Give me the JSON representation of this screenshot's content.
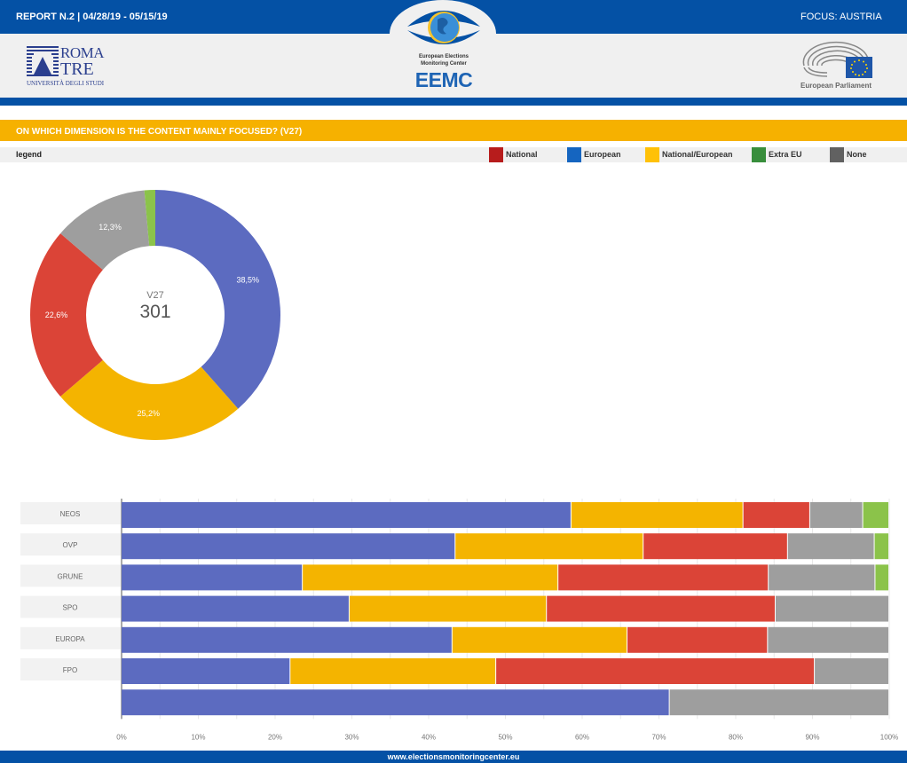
{
  "header": {
    "report_label": "REPORT N.2 | 04/28/19 - 05/15/19",
    "focus_label": "FOCUS: AUSTRIA",
    "logo_left": {
      "line1": "ROMA",
      "line2": "TRE",
      "line3": "UNIVERSITÀ DEGLI STUDI"
    },
    "logo_center": {
      "line1": "European Elections",
      "line2": "Monitoring Center",
      "acronym": "EEMC"
    },
    "logo_right": {
      "caption": "European Parliament"
    }
  },
  "question": {
    "title": "ON WHICH DIMENSION IS THE CONTENT MAINLY FOCUSED? (V27)"
  },
  "legend": {
    "label": "legend",
    "items": [
      {
        "label": "National",
        "color": "#b71c1c"
      },
      {
        "label": "European",
        "color": "#1565c0"
      },
      {
        "label": "National/European",
        "color": "#ffc107"
      },
      {
        "label": "Extra EU",
        "color": "#388e3c"
      },
      {
        "label": "None",
        "color": "#616161"
      }
    ]
  },
  "footer": {
    "url": "www.electionsmonitoringcenter.eu"
  },
  "chart_data": [
    {
      "type": "pie",
      "subtype": "donut",
      "center_label": "V27",
      "center_value": "301",
      "slices": [
        {
          "name": "European",
          "value": 38.5,
          "label": "38,5%",
          "color": "#5c6bc0"
        },
        {
          "name": "National/European",
          "value": 25.2,
          "label": "25,2%",
          "color": "#f4b400"
        },
        {
          "name": "National",
          "value": 22.6,
          "label": "22,6%",
          "color": "#db4437"
        },
        {
          "name": "None",
          "value": 12.3,
          "label": "12,3%",
          "color": "#9e9e9e"
        },
        {
          "name": "Extra EU",
          "value": 1.4,
          "label": "",
          "color": "#8bc34a"
        }
      ]
    },
    {
      "type": "bar",
      "orientation": "horizontal",
      "stacked": "percent",
      "categories": [
        "NEOS",
        "OVP",
        "GRUNE",
        "SPO",
        "EUROPA",
        "FPO",
        ""
      ],
      "series": [
        {
          "name": "European",
          "color": "#5c6bc0",
          "values": [
            58.6,
            43.5,
            23.6,
            29.7,
            43.1,
            22.0,
            71.4
          ]
        },
        {
          "name": "National/European",
          "color": "#f4b400",
          "values": [
            22.4,
            24.5,
            33.3,
            25.7,
            22.8,
            26.8,
            0
          ]
        },
        {
          "name": "National",
          "color": "#db4437",
          "values": [
            8.7,
            18.8,
            27.4,
            29.8,
            18.3,
            41.5,
            0
          ]
        },
        {
          "name": "None",
          "color": "#9e9e9e",
          "values": [
            6.9,
            11.3,
            13.9,
            14.8,
            15.8,
            9.7,
            28.6
          ]
        },
        {
          "name": "Extra EU",
          "color": "#8bc34a",
          "values": [
            3.4,
            1.9,
            1.8,
            0,
            0,
            0,
            0
          ]
        }
      ],
      "xlim": [
        0,
        100
      ],
      "xticks": [
        "0%",
        "10%",
        "20%",
        "30%",
        "40%",
        "50%",
        "60%",
        "70%",
        "80%",
        "90%",
        "100%"
      ],
      "grid": true
    }
  ]
}
